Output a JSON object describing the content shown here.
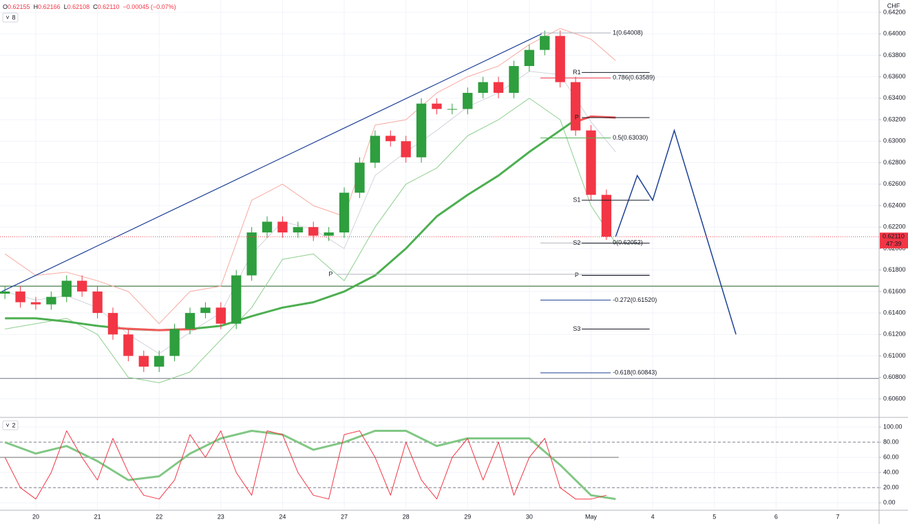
{
  "chart_data": [
    {
      "type": "candlestick",
      "legend": [
        [
          "O",
          "0.62155"
        ],
        [
          "H",
          "0.62166"
        ],
        [
          "L",
          "0.62108"
        ],
        [
          "C",
          "0.62110"
        ]
      ],
      "change": "−0.00045 (−0.07%)",
      "pane_label": "8",
      "currency": "CHF",
      "xlim": [
        -0.58,
        13.67
      ],
      "xticks": [
        {
          "value": 0,
          "label": "20"
        },
        {
          "value": 1,
          "label": "21"
        },
        {
          "value": 2,
          "label": "22"
        },
        {
          "value": 3,
          "label": "23"
        },
        {
          "value": 4,
          "label": "24"
        },
        {
          "value": 5,
          "label": "27"
        },
        {
          "value": 6,
          "label": "28"
        },
        {
          "value": 7,
          "label": "29"
        },
        {
          "value": 8,
          "label": "30"
        },
        {
          "value": 9,
          "label": "May"
        },
        {
          "value": 10,
          "label": "4"
        },
        {
          "value": 11,
          "label": "5"
        },
        {
          "value": 12,
          "label": "6"
        },
        {
          "value": 13,
          "label": "7"
        }
      ],
      "ylim": [
        0.6044,
        0.64315
      ],
      "yticks": [
        {
          "value": 0.642,
          "label": "0.64200"
        },
        {
          "value": 0.64,
          "label": "0.64000"
        },
        {
          "value": 0.638,
          "label": "0.63800"
        },
        {
          "value": 0.636,
          "label": "0.63600"
        },
        {
          "value": 0.634,
          "label": "0.63400"
        },
        {
          "value": 0.632,
          "label": "0.63200"
        },
        {
          "value": 0.63,
          "label": "0.63000"
        },
        {
          "value": 0.628,
          "label": "0.62800"
        },
        {
          "value": 0.626,
          "label": "0.62600"
        },
        {
          "value": 0.624,
          "label": "0.62400"
        },
        {
          "value": 0.622,
          "label": "0.62200"
        },
        {
          "value": 0.62,
          "label": "0.62000"
        },
        {
          "value": 0.618,
          "label": "0.61800"
        },
        {
          "value": 0.616,
          "label": "0.61600"
        },
        {
          "value": 0.614,
          "label": "0.61400"
        },
        {
          "value": 0.612,
          "label": "0.61200"
        },
        {
          "value": 0.61,
          "label": "0.61000"
        },
        {
          "value": 0.608,
          "label": "0.60800"
        },
        {
          "value": 0.606,
          "label": "0.60600"
        }
      ],
      "grid": true,
      "up_color": "#2e9e3e",
      "down_color": "#f23645",
      "candles": {
        "x": [
          -0.5,
          -0.25,
          0,
          0.25,
          0.5,
          0.75,
          1,
          1.25,
          1.5,
          1.75,
          2,
          2.25,
          2.5,
          2.75,
          3,
          3.25,
          3.5,
          3.75,
          4,
          4.25,
          4.5,
          4.75,
          5,
          5.25,
          5.5,
          5.75,
          6,
          6.25,
          6.5,
          6.75,
          7,
          7.25,
          7.5,
          7.75,
          8,
          8.25,
          8.5,
          8.75,
          9,
          9.25
        ],
        "open": [
          0.6158,
          0.616,
          0.615,
          0.6148,
          0.6155,
          0.617,
          0.616,
          0.614,
          0.612,
          0.61,
          0.609,
          0.61,
          0.6125,
          0.614,
          0.6145,
          0.613,
          0.6175,
          0.6215,
          0.6225,
          0.6215,
          0.622,
          0.6212,
          0.6215,
          0.6252,
          0.628,
          0.6305,
          0.63,
          0.6285,
          0.6335,
          0.633,
          0.633,
          0.6345,
          0.6355,
          0.6345,
          0.637,
          0.6385,
          0.6398,
          0.6355,
          0.631,
          0.625
        ],
        "high": [
          0.6165,
          0.6165,
          0.6155,
          0.616,
          0.6175,
          0.6175,
          0.6165,
          0.6145,
          0.6125,
          0.6105,
          0.6105,
          0.613,
          0.6145,
          0.615,
          0.615,
          0.618,
          0.622,
          0.623,
          0.623,
          0.6225,
          0.6225,
          0.622,
          0.6257,
          0.6285,
          0.631,
          0.631,
          0.6305,
          0.634,
          0.634,
          0.6335,
          0.635,
          0.636,
          0.636,
          0.6375,
          0.639,
          0.6403,
          0.6403,
          0.636,
          0.6315,
          0.6255
        ],
        "low": [
          0.6153,
          0.6145,
          0.6143,
          0.6143,
          0.615,
          0.6155,
          0.6135,
          0.6115,
          0.6095,
          0.6085,
          0.6085,
          0.6095,
          0.612,
          0.6135,
          0.6125,
          0.6125,
          0.617,
          0.621,
          0.621,
          0.621,
          0.6207,
          0.6207,
          0.621,
          0.6247,
          0.6275,
          0.6295,
          0.628,
          0.628,
          0.6325,
          0.6325,
          0.6325,
          0.634,
          0.634,
          0.634,
          0.6365,
          0.638,
          0.635,
          0.6305,
          0.6245,
          0.6208
        ],
        "close": [
          0.616,
          0.615,
          0.6148,
          0.6155,
          0.617,
          0.616,
          0.614,
          0.612,
          0.61,
          0.609,
          0.61,
          0.6125,
          0.614,
          0.6145,
          0.613,
          0.6175,
          0.6215,
          0.6225,
          0.6215,
          0.622,
          0.6212,
          0.6215,
          0.6252,
          0.628,
          0.6305,
          0.63,
          0.6285,
          0.6335,
          0.633,
          0.633,
          0.6345,
          0.6355,
          0.6345,
          0.637,
          0.6385,
          0.6398,
          0.6355,
          0.631,
          0.625,
          0.6211
        ]
      },
      "series": [
        {
          "color": "#f7a9a0",
          "width": 1,
          "x": [
            -0.5,
            0,
            0.5,
            1,
            1.5,
            2,
            2.5,
            3,
            3.5,
            4,
            4.5,
            5,
            5.5,
            6,
            6.5,
            7,
            7.5,
            8,
            8.5,
            9,
            9.4
          ],
          "values": [
            0.6195,
            0.6175,
            0.6178,
            0.617,
            0.616,
            0.613,
            0.616,
            0.6165,
            0.6245,
            0.626,
            0.624,
            0.623,
            0.6315,
            0.632,
            0.6345,
            0.636,
            0.637,
            0.639,
            0.6405,
            0.6395,
            0.6375
          ]
        },
        {
          "color": "#d1d4dc",
          "width": 1,
          "x": [
            -0.5,
            0,
            0.5,
            1,
            1.5,
            2,
            2.5,
            3,
            3.5,
            4,
            4.5,
            5,
            5.5,
            6,
            6.5,
            7,
            7.5,
            8,
            8.5,
            9,
            9.4
          ],
          "values": [
            0.616,
            0.6152,
            0.6156,
            0.6145,
            0.612,
            0.6102,
            0.6122,
            0.614,
            0.6195,
            0.6225,
            0.6218,
            0.62,
            0.6268,
            0.629,
            0.631,
            0.6332,
            0.6345,
            0.6365,
            0.6362,
            0.6318,
            0.629
          ]
        },
        {
          "color": "#8fcf8f",
          "width": 1,
          "x": [
            -0.5,
            0,
            0.5,
            1,
            1.5,
            2,
            2.5,
            3,
            3.5,
            4,
            4.5,
            5,
            5.5,
            6,
            6.5,
            7,
            7.5,
            8,
            8.5,
            9,
            9.4
          ],
          "values": [
            0.6125,
            0.613,
            0.6135,
            0.612,
            0.608,
            0.6075,
            0.6085,
            0.6115,
            0.6145,
            0.619,
            0.6195,
            0.617,
            0.622,
            0.626,
            0.6275,
            0.6305,
            0.632,
            0.634,
            0.632,
            0.624,
            0.6205
          ]
        },
        {
          "color": "#4caf50",
          "width": 3,
          "x": [
            -0.5,
            0,
            0.5,
            1,
            1.5,
            2,
            2.5,
            3,
            3.5,
            4,
            4.5,
            5,
            5.5,
            6,
            6.5,
            7,
            7.5,
            8,
            8.5,
            8.75
          ],
          "values": [
            0.6135,
            0.6135,
            0.6132,
            0.6128,
            0.6125,
            0.6124,
            0.6125,
            0.6128,
            0.6137,
            0.6145,
            0.615,
            0.616,
            0.6175,
            0.62,
            0.623,
            0.625,
            0.6268,
            0.629,
            0.631,
            0.632
          ]
        },
        {
          "color": "#f0595a",
          "width": 3,
          "x": [
            1.25,
            2,
            2.6,
            2.7,
            8.75,
            9.0,
            9.4
          ],
          "values": [
            0.6126,
            0.6124,
            0.6125,
            null,
            0.6318,
            0.6323,
            0.6322
          ]
        },
        {
          "color": "#1c3f95",
          "width": 1.2,
          "x": [
            -0.55,
            8.2
          ],
          "values": [
            0.616,
            0.64
          ]
        },
        {
          "color": "#1c3f95",
          "width": 1.5,
          "x": [
            9.4,
            9.75,
            10.0,
            10.35,
            11.35
          ],
          "values": [
            0.6211,
            0.6268,
            0.6245,
            0.631,
            0.612
          ]
        }
      ],
      "hlines": [
        {
          "value": 0.6165,
          "color": "#1b5e20"
        },
        {
          "value": 0.6079,
          "color": "#787b86"
        }
      ],
      "fib_levels": [
        {
          "label": "1(0.64008)",
          "value": 0.64008,
          "color": "#b2b5be"
        },
        {
          "label": "0.786(0.63589)",
          "value": 0.63589,
          "color": "#f23645"
        },
        {
          "label": "0.5(0.63030)",
          "value": 0.6303,
          "color": "#4caf50"
        },
        {
          "label": "0(0.62052)",
          "value": 0.62052,
          "color": "#b2b5be"
        },
        {
          "label": "-0.272(0.61520)",
          "value": 0.6152,
          "color": "#1c3f95"
        },
        {
          "label": "-0.618(0.60843)",
          "value": 0.60843,
          "color": "#1c3f95"
        }
      ],
      "pivots": [
        {
          "label": "R1",
          "value": 0.6364
        },
        {
          "label": "P",
          "value": 0.6322
        },
        {
          "label": "S1",
          "value": 0.6245
        },
        {
          "label": "S2",
          "value": 0.6205
        },
        {
          "label": "P",
          "value": 0.6175
        },
        {
          "label": "S3",
          "value": 0.6125
        }
      ],
      "prior_pivots": [
        {
          "label": "P",
          "value": 0.6176
        }
      ],
      "last_price": {
        "value": 0.6211,
        "label": "0.62110",
        "countdown": "47:39",
        "color": "#f23645"
      }
    },
    {
      "type": "line",
      "pane_label": "2",
      "ylim": [
        -8,
        110
      ],
      "yticks": [
        {
          "value": 100,
          "label": "100.00"
        },
        {
          "value": 80,
          "label": "80.00"
        },
        {
          "value": 60,
          "label": "60.00"
        },
        {
          "value": 40,
          "label": "40.00"
        },
        {
          "value": 20,
          "label": "20.00"
        },
        {
          "value": 0,
          "label": "0.00"
        }
      ],
      "levels": [
        80,
        60,
        20
      ],
      "series": [
        {
          "color": "#81c784",
          "width": 3,
          "x": [
            -0.5,
            0,
            0.5,
            1,
            1.5,
            2,
            2.5,
            3,
            3.5,
            4,
            4.5,
            5,
            5.5,
            6,
            6.5,
            7,
            7.5,
            8,
            8.5,
            9,
            9.4
          ],
          "values": [
            80,
            65,
            75,
            55,
            30,
            35,
            65,
            85,
            95,
            90,
            70,
            80,
            95,
            95,
            75,
            85,
            85,
            85,
            50,
            10,
            5
          ]
        },
        {
          "color": "#f23645",
          "width": 1,
          "x": [
            -0.5,
            -0.25,
            0,
            0.25,
            0.5,
            0.75,
            1,
            1.25,
            1.5,
            1.75,
            2,
            2.25,
            2.5,
            2.75,
            3,
            3.25,
            3.5,
            3.75,
            4,
            4.25,
            4.5,
            4.75,
            5,
            5.25,
            5.5,
            5.75,
            6,
            6.25,
            6.5,
            6.75,
            7,
            7.25,
            7.5,
            7.75,
            8,
            8.25,
            8.5,
            8.75,
            9,
            9.25
          ],
          "values": [
            60,
            20,
            5,
            40,
            95,
            60,
            30,
            85,
            40,
            10,
            5,
            30,
            90,
            60,
            95,
            40,
            10,
            95,
            90,
            40,
            10,
            5,
            90,
            95,
            60,
            10,
            80,
            30,
            5,
            60,
            85,
            30,
            80,
            10,
            60,
            85,
            20,
            5,
            5,
            10
          ]
        }
      ]
    }
  ]
}
